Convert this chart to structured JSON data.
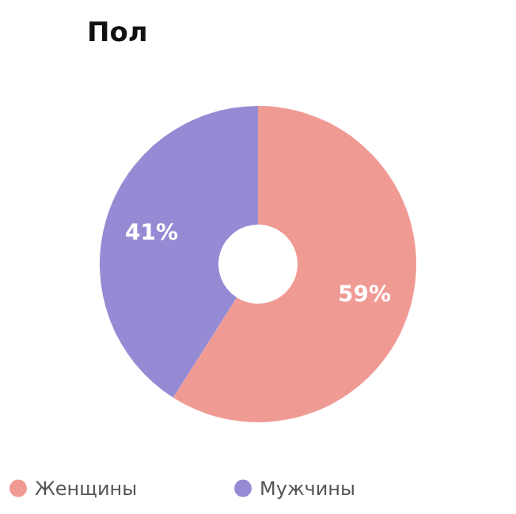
{
  "chart_data": {
    "type": "donut",
    "title": "Пол",
    "categories": [
      "Женщины",
      "Мужчины"
    ],
    "values": [
      59,
      41
    ],
    "colors": [
      "#f09a94",
      "#958bd4"
    ],
    "value_labels": [
      "59%",
      "41%"
    ],
    "legend": "bottom"
  }
}
